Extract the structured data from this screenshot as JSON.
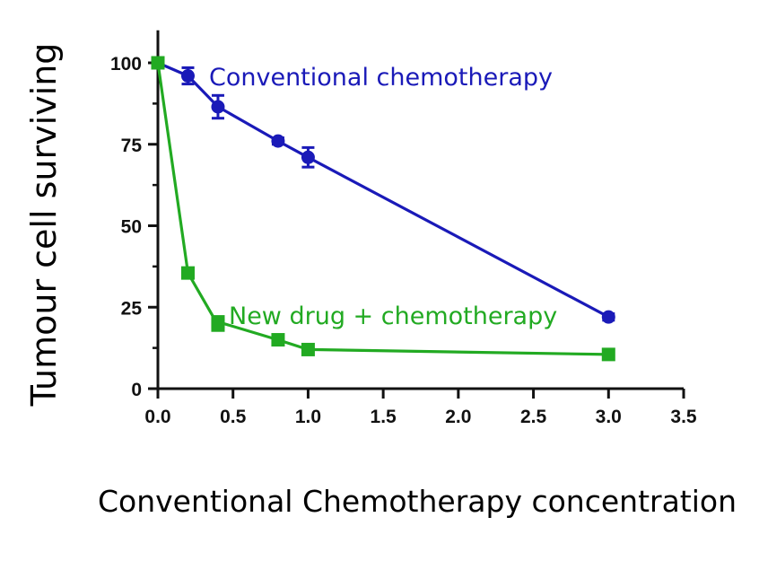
{
  "chart_data": {
    "type": "line",
    "xlabel": "Conventional Chemotherapy concentration",
    "ylabel": "Tumour  cell  surviving",
    "xlim": [
      0,
      3.5
    ],
    "ylim": [
      0,
      110
    ],
    "xticks": [
      "0.0",
      "0.5",
      "1.0",
      "1.5",
      "2.0",
      "2.5",
      "3.0",
      "3.5"
    ],
    "yticks": [
      "0",
      "25",
      "50",
      "75",
      "100"
    ],
    "grid": false,
    "series": [
      {
        "name": "Conventional chemotherapy",
        "color": "#1a1ab8",
        "marker": "circle",
        "points": [
          {
            "x": 0.0,
            "y": 100,
            "err": 1.5
          },
          {
            "x": 0.2,
            "y": 96,
            "err": 2.5
          },
          {
            "x": 0.4,
            "y": 86.5,
            "err": 3.5
          },
          {
            "x": 0.8,
            "y": 76,
            "err": 1
          },
          {
            "x": 1.0,
            "y": 71,
            "err": 3
          },
          {
            "x": 3.0,
            "y": 22,
            "err": 1
          }
        ]
      },
      {
        "name": "New drug + chemotherapy",
        "color": "#22aa22",
        "marker": "square",
        "points": [
          {
            "x": 0.0,
            "y": 100,
            "err": 1.5
          },
          {
            "x": 0.2,
            "y": 35.5,
            "err": 1
          },
          {
            "x": 0.4,
            "y": 19.5,
            "err": 1
          },
          {
            "x": 0.4,
            "y": 20.5,
            "err": 1
          },
          {
            "x": 0.8,
            "y": 15,
            "err": 1
          },
          {
            "x": 1.0,
            "y": 12,
            "err": 1
          },
          {
            "x": 3.0,
            "y": 10.5,
            "err": 1
          }
        ]
      }
    ]
  }
}
